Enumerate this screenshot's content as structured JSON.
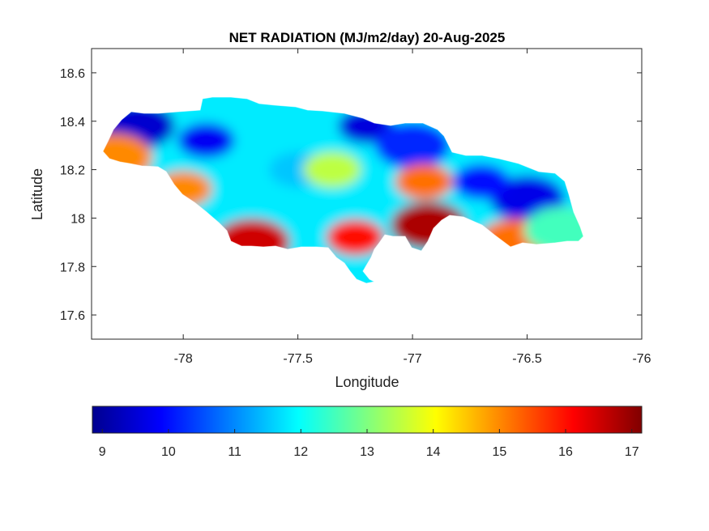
{
  "chart_data": {
    "type": "heatmap",
    "title": "NET RADIATION (MJ/m2/day) 20-Aug-2025",
    "xlabel": "Longitude",
    "ylabel": "Latitude",
    "xlim": [
      -78.4,
      -76
    ],
    "ylim": [
      17.5,
      18.7
    ],
    "xticks": [
      -78,
      -77.5,
      -77,
      -76.5,
      -76
    ],
    "xtick_labels": [
      "-78",
      "-77.5",
      "-77",
      "-76.5",
      "-76"
    ],
    "yticks": [
      17.6,
      17.8,
      18,
      18.2,
      18.4,
      18.6
    ],
    "ytick_labels": [
      "17.6",
      "17.8",
      "18",
      "18.2",
      "18.4",
      "18.6"
    ],
    "colorbar": {
      "min": 8.85,
      "max": 17.15,
      "colormap": "jet",
      "ticks": [
        9,
        10,
        11,
        12,
        13,
        14,
        15,
        16,
        17
      ],
      "tick_labels": [
        "9",
        "10",
        "11",
        "12",
        "13",
        "14",
        "15",
        "16",
        "17"
      ]
    },
    "region": "Jamaica",
    "field_features": [
      {
        "lon": -77.9,
        "lat": 18.32,
        "value": 9.8
      },
      {
        "lon": -78.2,
        "lat": 18.38,
        "value": 9.5
      },
      {
        "lon": -77.2,
        "lat": 18.38,
        "value": 9.6
      },
      {
        "lon": -76.5,
        "lat": 18.08,
        "value": 9.7
      },
      {
        "lon": -76.7,
        "lat": 18.15,
        "value": 10.0
      },
      {
        "lon": -77.0,
        "lat": 18.3,
        "value": 10.2
      },
      {
        "lon": -77.5,
        "lat": 18.2,
        "value": 11.5
      },
      {
        "lon": -77.7,
        "lat": 17.9,
        "value": 16.5
      },
      {
        "lon": -77.25,
        "lat": 17.92,
        "value": 16.0
      },
      {
        "lon": -76.93,
        "lat": 17.97,
        "value": 16.8
      },
      {
        "lon": -76.95,
        "lat": 18.15,
        "value": 15.2
      },
      {
        "lon": -78.3,
        "lat": 18.25,
        "value": 15.0
      },
      {
        "lon": -78.0,
        "lat": 18.12,
        "value": 15.0
      },
      {
        "lon": -76.55,
        "lat": 17.9,
        "value": 15.2
      },
      {
        "lon": -77.35,
        "lat": 18.2,
        "value": 13.5
      },
      {
        "lon": -76.35,
        "lat": 17.95,
        "value": 12.5
      }
    ]
  }
}
